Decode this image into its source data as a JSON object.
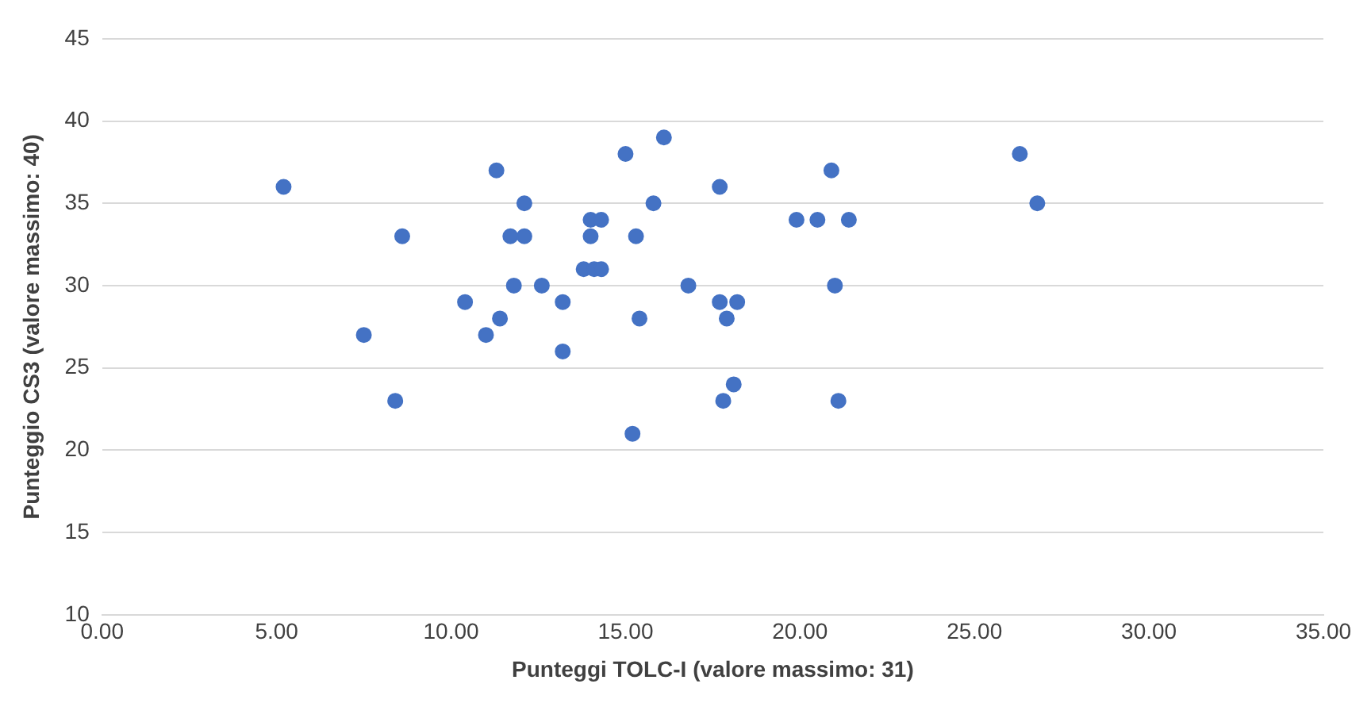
{
  "chart_data": {
    "type": "scatter",
    "xlabel": "Punteggi TOLC-I (valore massimo: 31)",
    "ylabel": "Punteggio CS3 (valore massimo: 40)",
    "x": [
      5.2,
      7.5,
      8.4,
      8.6,
      10.4,
      11.0,
      11.3,
      11.4,
      11.7,
      11.8,
      12.1,
      12.1,
      12.6,
      13.2,
      13.2,
      13.8,
      14.0,
      14.0,
      14.1,
      14.3,
      14.3,
      15.0,
      15.2,
      15.3,
      15.4,
      15.8,
      16.1,
      16.8,
      17.7,
      17.7,
      17.8,
      17.9,
      18.1,
      18.2,
      19.9,
      20.5,
      20.9,
      21.0,
      21.1,
      21.4,
      26.3,
      26.8
    ],
    "series": [
      {
        "color": "#4472c4",
        "values": [
          36,
          27,
          23,
          33,
          29,
          27,
          37,
          28,
          33,
          30,
          35,
          33,
          30,
          29,
          26,
          31,
          34,
          33,
          31,
          31,
          34,
          38,
          21,
          33,
          28,
          35,
          39,
          30,
          36,
          29,
          23,
          28,
          24,
          29,
          34,
          34,
          37,
          30,
          23,
          34,
          38,
          35
        ]
      }
    ],
    "xlim": [
      0,
      35
    ],
    "xticks": [
      {
        "value": 0,
        "label": "0.00"
      },
      {
        "value": 5,
        "label": "5.00"
      },
      {
        "value": 10,
        "label": "10.00"
      },
      {
        "value": 15,
        "label": "15.00"
      },
      {
        "value": 20,
        "label": "20.00"
      },
      {
        "value": 25,
        "label": "25.00"
      },
      {
        "value": 30,
        "label": "30.00"
      },
      {
        "value": 35,
        "label": "35.00"
      }
    ],
    "ylim": [
      10,
      45
    ],
    "yticks": [
      10,
      15,
      20,
      25,
      30,
      35,
      40,
      45
    ],
    "grid": "y",
    "legend": false,
    "marker": "circle"
  }
}
